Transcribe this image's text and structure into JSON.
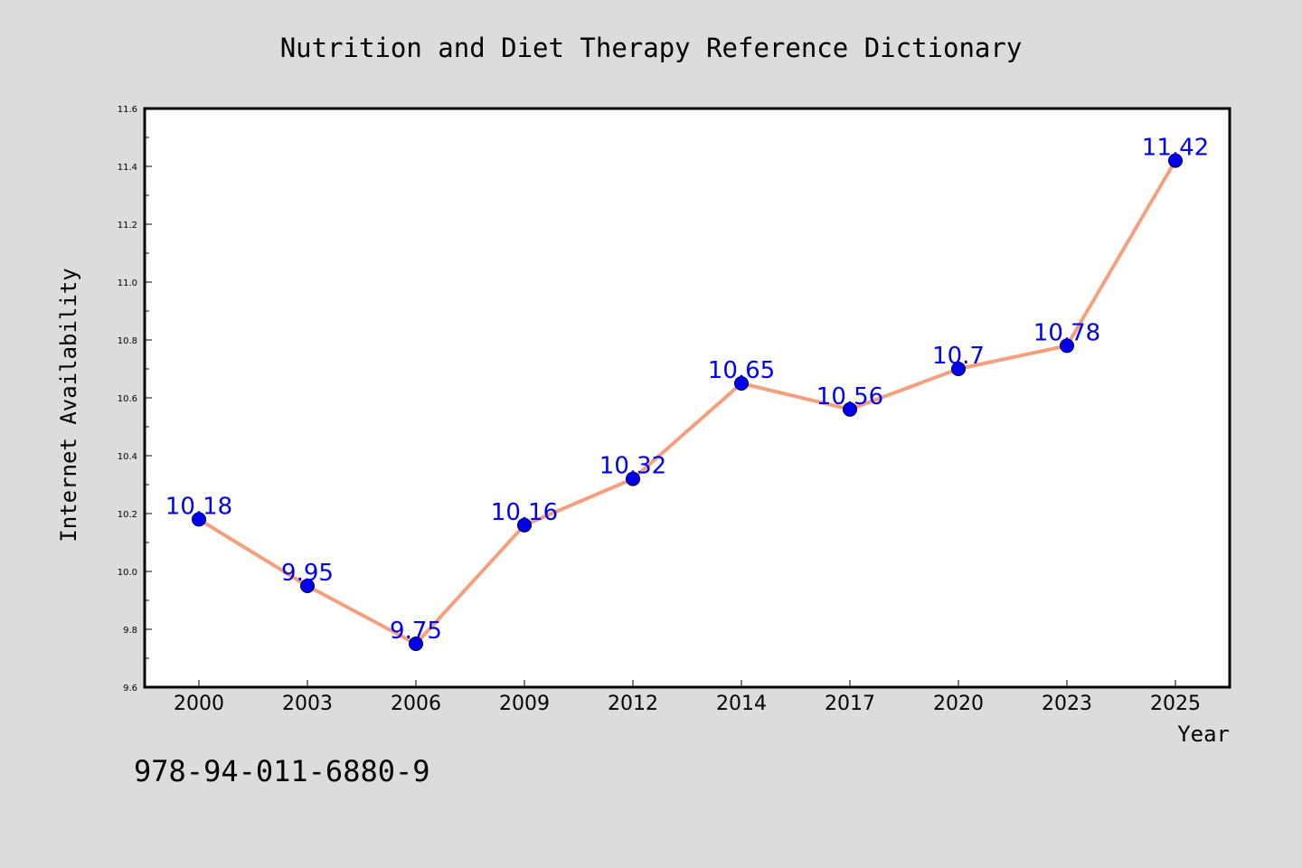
{
  "chart_data": {
    "type": "line",
    "title": "Nutrition and Diet Therapy Reference Dictionary",
    "xlabel": "Year",
    "ylabel": "Internet Availability",
    "categories": [
      "2000",
      "2003",
      "2006",
      "2009",
      "2012",
      "2014",
      "2017",
      "2020",
      "2023",
      "2025"
    ],
    "series": [
      {
        "values": [
          10.18,
          9.95,
          9.75,
          10.16,
          10.32,
          10.65,
          10.56,
          10.7,
          10.78,
          11.42
        ],
        "labels": [
          "10.18",
          "9.95",
          "9.75",
          "10.16",
          "10.32",
          "10.65",
          "10.56",
          "10.7",
          "10.78",
          "11.42"
        ],
        "line_color": "#f4a07f",
        "marker_color": "#0000ee",
        "label_color": "#0000ee"
      }
    ],
    "ylim": [
      9.6,
      11.6
    ],
    "yticks": [
      "9.6",
      "9.8",
      "10.0",
      "10.2",
      "10.4",
      "10.6",
      "10.8",
      "11.0",
      "11.2",
      "11.4",
      "11.6"
    ],
    "grid": false,
    "legend": "none"
  },
  "footer": {
    "isbn": "978-94-011-6880-9"
  },
  "colors": {
    "background": "#dcdcdc",
    "plot_background": "#ffffff",
    "axes": "#000000"
  }
}
